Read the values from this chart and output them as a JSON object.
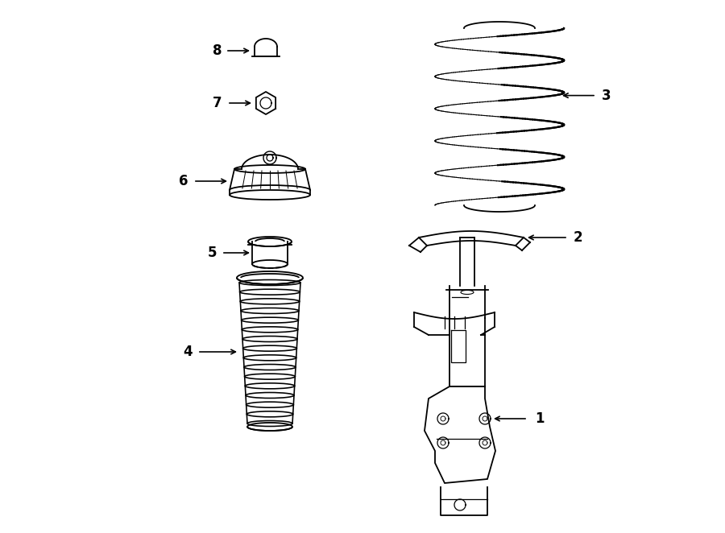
{
  "bg_color": "#ffffff",
  "line_color": "#000000",
  "label_color": "#000000",
  "fig_width": 9.0,
  "fig_height": 6.62,
  "dpi": 100
}
